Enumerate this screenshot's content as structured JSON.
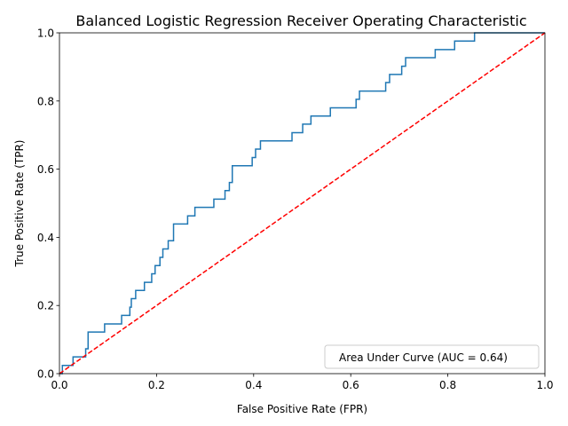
{
  "chart_data": {
    "type": "line",
    "title": "Balanced Logistic Regression Receiver Operating Characteristic",
    "xlabel": "False Positive Rate (FPR)",
    "ylabel": "True Positive Rate (TPR)",
    "xlim": [
      0,
      1
    ],
    "ylim": [
      0,
      1
    ],
    "x_ticks": [
      "0.0",
      "0.2",
      "0.4",
      "0.6",
      "0.8",
      "1.0"
    ],
    "y_ticks": [
      "0.0",
      "0.2",
      "0.4",
      "0.6",
      "0.8",
      "1.0"
    ],
    "grid": false,
    "legend": {
      "position": "lower-right",
      "entries": [
        "Area Under Curve (AUC = 0.64)"
      ]
    },
    "series": [
      {
        "name": "Area Under Curve (AUC = 0.64)",
        "style": "step",
        "color": "#1f77b4",
        "x": [
          0.0,
          0.0,
          0.006,
          0.006,
          0.028,
          0.028,
          0.054,
          0.054,
          0.059,
          0.059,
          0.093,
          0.093,
          0.128,
          0.128,
          0.145,
          0.145,
          0.148,
          0.148,
          0.157,
          0.157,
          0.175,
          0.175,
          0.19,
          0.19,
          0.197,
          0.197,
          0.207,
          0.207,
          0.213,
          0.213,
          0.224,
          0.224,
          0.235,
          0.235,
          0.264,
          0.264,
          0.279,
          0.279,
          0.318,
          0.318,
          0.341,
          0.341,
          0.35,
          0.35,
          0.356,
          0.356,
          0.397,
          0.397,
          0.404,
          0.404,
          0.414,
          0.414,
          0.479,
          0.479,
          0.501,
          0.501,
          0.518,
          0.518,
          0.558,
          0.558,
          0.611,
          0.611,
          0.618,
          0.618,
          0.672,
          0.672,
          0.68,
          0.68,
          0.705,
          0.705,
          0.713,
          0.713,
          0.774,
          0.774,
          0.814,
          0.814,
          0.855,
          0.855,
          1.0
        ],
        "y": [
          0.0,
          0.0,
          0.0,
          0.024,
          0.024,
          0.049,
          0.049,
          0.073,
          0.073,
          0.122,
          0.122,
          0.146,
          0.146,
          0.171,
          0.171,
          0.195,
          0.195,
          0.22,
          0.22,
          0.244,
          0.244,
          0.268,
          0.268,
          0.293,
          0.293,
          0.317,
          0.317,
          0.341,
          0.341,
          0.366,
          0.366,
          0.39,
          0.39,
          0.439,
          0.439,
          0.463,
          0.463,
          0.488,
          0.488,
          0.512,
          0.512,
          0.537,
          0.537,
          0.561,
          0.561,
          0.61,
          0.61,
          0.634,
          0.634,
          0.659,
          0.659,
          0.683,
          0.683,
          0.707,
          0.707,
          0.732,
          0.732,
          0.756,
          0.756,
          0.78,
          0.78,
          0.805,
          0.805,
          0.829,
          0.829,
          0.854,
          0.854,
          0.878,
          0.878,
          0.902,
          0.902,
          0.927,
          0.927,
          0.951,
          0.951,
          0.976,
          0.976,
          1.0,
          1.0
        ]
      },
      {
        "name": "",
        "style": "dashed",
        "color": "#ff0000",
        "x": [
          0,
          1
        ],
        "y": [
          0,
          1
        ]
      }
    ]
  }
}
